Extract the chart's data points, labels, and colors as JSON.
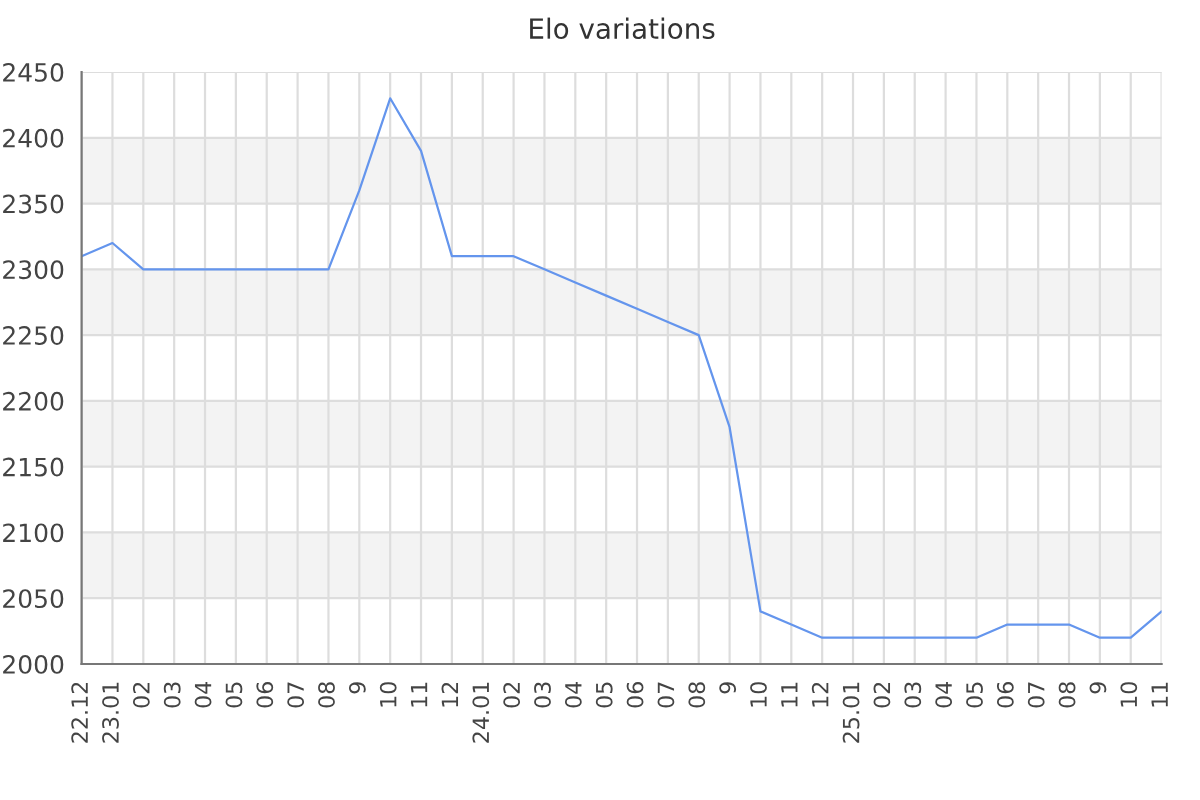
{
  "chart_data": {
    "type": "line",
    "title": "Elo variations",
    "categories": [
      "22.12",
      "23.01",
      "02",
      "03",
      "04",
      "05",
      "06",
      "07",
      "08",
      "9",
      "10",
      "11",
      "12",
      "24.01",
      "02",
      "03",
      "04",
      "05",
      "06",
      "07",
      "08",
      "9",
      "10",
      "11",
      "12",
      "25.01",
      "02",
      "03",
      "04",
      "05",
      "06",
      "07",
      "08",
      "9",
      "10",
      "11"
    ],
    "series": [
      {
        "color": "#6495ed",
        "values": [
          2310,
          2320,
          2300,
          2300,
          2300,
          2300,
          2300,
          2300,
          2300,
          2360,
          2430,
          2390,
          2310,
          2310,
          2310,
          2300,
          2290,
          2280,
          2270,
          2260,
          2250,
          2180,
          2040,
          2030,
          2020,
          2020,
          2020,
          2020,
          2020,
          2020,
          2030,
          2030,
          2030,
          2020,
          2020,
          2040
        ]
      }
    ],
    "ylim": [
      2000,
      2450
    ],
    "yticks": [
      2000,
      2050,
      2100,
      2150,
      2200,
      2250,
      2300,
      2350,
      2400,
      2450
    ],
    "bands": [
      {
        "axis": "y",
        "from": 2050,
        "to": 2100,
        "color": "#f3f3f3"
      },
      {
        "axis": "y",
        "from": 2150,
        "to": 2200,
        "color": "#f3f3f3"
      },
      {
        "axis": "y",
        "from": 2250,
        "to": 2300,
        "color": "#f3f3f3"
      },
      {
        "axis": "y",
        "from": 2350,
        "to": 2400,
        "color": "#f3f3f3"
      }
    ],
    "grid": true,
    "marker": "none",
    "line_style": "solid",
    "legend": false
  }
}
